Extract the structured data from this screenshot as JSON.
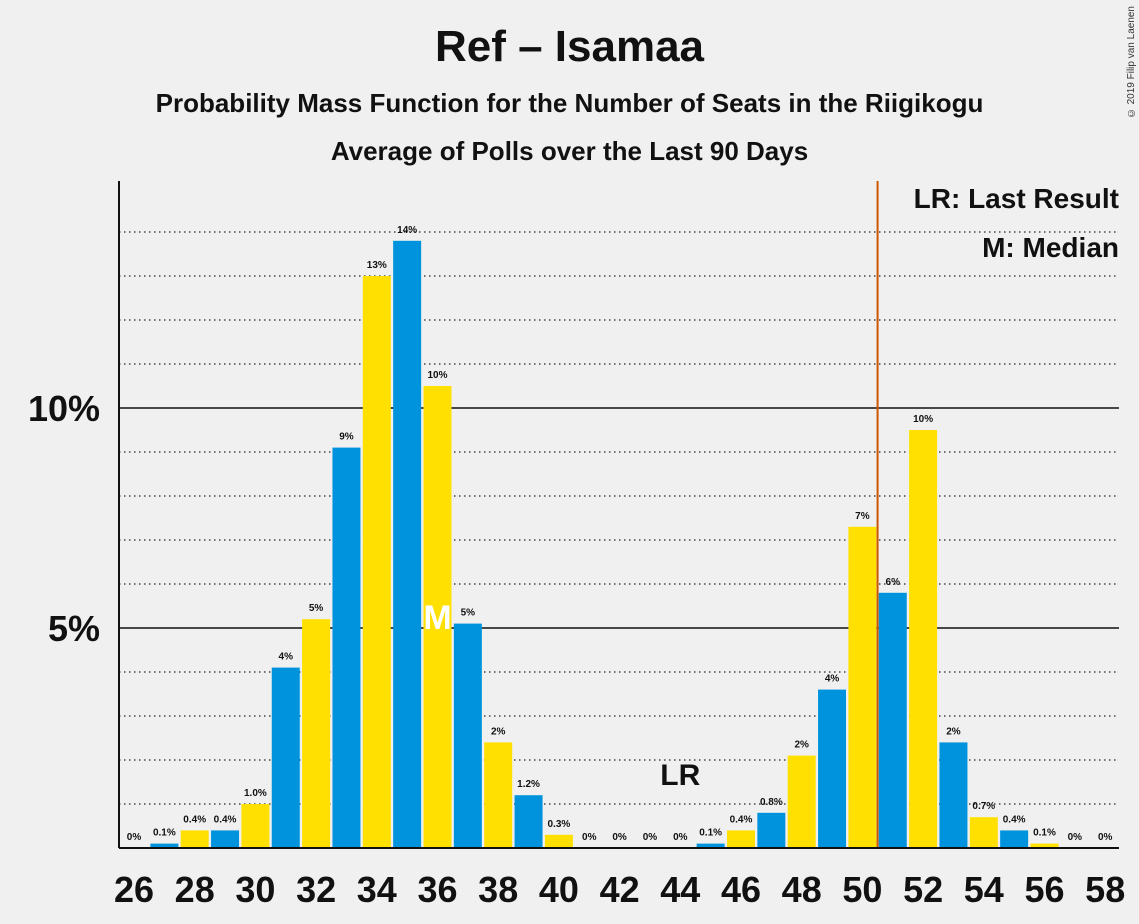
{
  "title": "Ref – Isamaa",
  "subtitle": "Probability Mass Function for the Number of Seats in the Riigikogu",
  "subtitle2": "Average of Polls over the Last 90 Days",
  "copyright": "© 2019 Filip van Laenen",
  "legend": {
    "lr": "LR: Last Result",
    "m": "M: Median"
  },
  "colors": {
    "blue": "#0093dd",
    "yellow": "#ffe000",
    "lr_line": "#cc5500"
  },
  "chart_data": {
    "type": "bar",
    "x": [
      26,
      27,
      28,
      29,
      30,
      31,
      32,
      33,
      34,
      35,
      36,
      37,
      38,
      39,
      40,
      41,
      42,
      43,
      44,
      45,
      46,
      47,
      48,
      49,
      50,
      51,
      52,
      53,
      54,
      55,
      56,
      57,
      58
    ],
    "values": [
      0,
      0.1,
      0.4,
      0.4,
      1.0,
      4.1,
      5.2,
      9.1,
      13.0,
      13.8,
      10.5,
      5.1,
      2.4,
      1.2,
      0.3,
      0,
      0,
      0,
      0,
      0.1,
      0.4,
      0.8,
      2.1,
      3.6,
      7.3,
      5.8,
      9.5,
      2.4,
      0.7,
      0.4,
      0.1,
      0,
      0
    ],
    "data_labels": [
      "0%",
      "0.1%",
      "0.4%",
      "0.4%",
      "1.0%",
      "4%",
      "5%",
      "9%",
      "13%",
      "14%",
      "10%",
      "5%",
      "2%",
      "1.2%",
      "0.3%",
      "0%",
      "0%",
      "0%",
      "0%",
      "0.1%",
      "0.4%",
      "0.8%",
      "2%",
      "4%",
      "7%",
      "6%",
      "10%",
      "2%",
      "0.7%",
      "0.4%",
      "0.1%",
      "0%",
      "0%"
    ],
    "x_tick_labels": [
      "26",
      "28",
      "30",
      "32",
      "34",
      "36",
      "38",
      "40",
      "42",
      "44",
      "46",
      "48",
      "50",
      "52",
      "54",
      "56",
      "58"
    ],
    "y_tick_labels": [
      {
        "value": 5,
        "label": "5%"
      },
      {
        "value": 10,
        "label": "10%"
      }
    ],
    "ylim": [
      0,
      15
    ],
    "last_result": 51,
    "last_result_label": "LR",
    "last_result_label_at": 44,
    "median": 36,
    "median_label": "M",
    "grid": true
  }
}
